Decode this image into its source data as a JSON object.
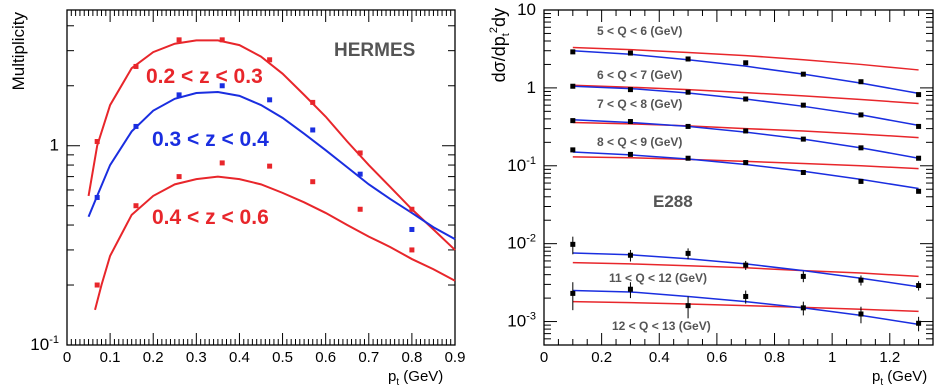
{
  "chart_data": [
    {
      "type": "scatter",
      "yscale": "log",
      "xlim": [
        0,
        0.9
      ],
      "ylim": [
        0.1,
        4.8
      ],
      "xlabel": "p_t (GeV)",
      "ylabel": "Multiplicity",
      "annotation": "HERMES",
      "x_ticks": [
        "0",
        "0.1",
        "0.2",
        "0.3",
        "0.4",
        "0.5",
        "0.6",
        "0.7",
        "0.8",
        "0.9"
      ],
      "y_ticks": [
        {
          "label": "10",
          "sup": "-1",
          "value": 0.1
        },
        {
          "label": "1",
          "sup": "",
          "value": 1
        }
      ],
      "series": [
        {
          "name": "0.2 < z < 0.3",
          "color": "#e8262b",
          "points": [
            [
              0.07,
              1.05
            ],
            [
              0.16,
              2.5
            ],
            [
              0.26,
              3.4
            ],
            [
              0.36,
              3.4
            ],
            [
              0.47,
              2.7
            ],
            [
              0.57,
              1.65
            ],
            [
              0.68,
              0.92
            ],
            [
              0.8,
              0.48
            ]
          ],
          "curve": [
            [
              0.05,
              0.56
            ],
            [
              0.07,
              1.0
            ],
            [
              0.1,
              1.6
            ],
            [
              0.15,
              2.45
            ],
            [
              0.2,
              2.95
            ],
            [
              0.25,
              3.25
            ],
            [
              0.3,
              3.38
            ],
            [
              0.35,
              3.38
            ],
            [
              0.4,
              3.2
            ],
            [
              0.45,
              2.8
            ],
            [
              0.5,
              2.3
            ],
            [
              0.55,
              1.8
            ],
            [
              0.6,
              1.4
            ],
            [
              0.65,
              1.05
            ],
            [
              0.7,
              0.8
            ],
            [
              0.75,
              0.62
            ],
            [
              0.8,
              0.48
            ],
            [
              0.85,
              0.38
            ],
            [
              0.9,
              0.3
            ]
          ]
        },
        {
          "name": "0.3 < z < 0.4",
          "color": "#1a2ee0",
          "points": [
            [
              0.07,
              0.55
            ],
            [
              0.16,
              1.25
            ],
            [
              0.26,
              1.8
            ],
            [
              0.36,
              2.0
            ],
            [
              0.47,
              1.7
            ],
            [
              0.57,
              1.2
            ],
            [
              0.68,
              0.72
            ],
            [
              0.8,
              0.38
            ]
          ],
          "curve": [
            [
              0.05,
              0.44
            ],
            [
              0.07,
              0.56
            ],
            [
              0.1,
              0.8
            ],
            [
              0.15,
              1.18
            ],
            [
              0.2,
              1.5
            ],
            [
              0.25,
              1.72
            ],
            [
              0.3,
              1.84
            ],
            [
              0.35,
              1.86
            ],
            [
              0.4,
              1.78
            ],
            [
              0.45,
              1.6
            ],
            [
              0.5,
              1.38
            ],
            [
              0.55,
              1.15
            ],
            [
              0.6,
              0.95
            ],
            [
              0.65,
              0.78
            ],
            [
              0.7,
              0.64
            ],
            [
              0.75,
              0.54
            ],
            [
              0.8,
              0.46
            ],
            [
              0.85,
              0.39
            ],
            [
              0.9,
              0.34
            ]
          ]
        },
        {
          "name": "0.4 < z < 0.6",
          "color": "#e8262b",
          "points": [
            [
              0.07,
              0.2
            ],
            [
              0.16,
              0.5
            ],
            [
              0.26,
              0.7
            ],
            [
              0.36,
              0.82
            ],
            [
              0.47,
              0.79
            ],
            [
              0.57,
              0.66
            ],
            [
              0.68,
              0.48
            ],
            [
              0.8,
              0.3
            ]
          ],
          "curve": [
            [
              0.065,
              0.15
            ],
            [
              0.08,
              0.2
            ],
            [
              0.1,
              0.28
            ],
            [
              0.15,
              0.45
            ],
            [
              0.2,
              0.56
            ],
            [
              0.25,
              0.64
            ],
            [
              0.3,
              0.68
            ],
            [
              0.35,
              0.7
            ],
            [
              0.4,
              0.68
            ],
            [
              0.45,
              0.64
            ],
            [
              0.5,
              0.58
            ],
            [
              0.55,
              0.52
            ],
            [
              0.6,
              0.46
            ],
            [
              0.65,
              0.4
            ],
            [
              0.7,
              0.35
            ],
            [
              0.75,
              0.31
            ],
            [
              0.8,
              0.27
            ],
            [
              0.85,
              0.24
            ],
            [
              0.9,
              0.21
            ]
          ]
        }
      ]
    },
    {
      "type": "scatter",
      "yscale": "log",
      "xlim": [
        0,
        1.35
      ],
      "ylim": [
        0.0005,
        10
      ],
      "xlabel": "p_t (GeV)",
      "ylabel": "dσ/dp_t^2dy",
      "annotation": "E288",
      "x_ticks": [
        "0",
        "0.2",
        "0.4",
        "0.6",
        "0.8",
        "1",
        "1.2"
      ],
      "y_ticks": [
        {
          "label": "10",
          "sup": "",
          "value": 10
        },
        {
          "label": "1",
          "sup": "",
          "value": 1
        },
        {
          "label": "10",
          "sup": "-1",
          "value": 0.1
        },
        {
          "label": "10",
          "sup": "-2",
          "value": 0.01
        },
        {
          "label": "10",
          "sup": "-3",
          "value": 0.001
        }
      ],
      "series": [
        {
          "name": "5 < Q < 6 (GeV)",
          "points": [
            [
              0.1,
              2.9
            ],
            [
              0.3,
              2.8
            ],
            [
              0.5,
              2.35
            ],
            [
              0.7,
              2.1
            ],
            [
              0.9,
              1.5
            ],
            [
              1.1,
              1.2
            ],
            [
              1.3,
              0.82
            ]
          ],
          "blue_curve": [
            [
              0.1,
              3.0
            ],
            [
              0.3,
              2.7
            ],
            [
              0.5,
              2.3
            ],
            [
              0.7,
              1.9
            ],
            [
              0.9,
              1.5
            ],
            [
              1.1,
              1.15
            ],
            [
              1.3,
              0.85
            ]
          ],
          "red_curve": [
            [
              0.1,
              3.3
            ],
            [
              0.3,
              3.1
            ],
            [
              0.5,
              2.85
            ],
            [
              0.7,
              2.6
            ],
            [
              0.9,
              2.3
            ],
            [
              1.1,
              2.0
            ],
            [
              1.3,
              1.7
            ]
          ]
        },
        {
          "name": "6 < Q < 7 (GeV)",
          "points": [
            [
              0.1,
              1.05
            ],
            [
              0.3,
              0.95
            ],
            [
              0.5,
              0.88
            ],
            [
              0.7,
              0.72
            ],
            [
              0.9,
              0.6
            ],
            [
              1.1,
              0.45
            ],
            [
              1.3,
              0.32
            ]
          ],
          "blue_curve": [
            [
              0.1,
              1.05
            ],
            [
              0.3,
              0.98
            ],
            [
              0.5,
              0.86
            ],
            [
              0.7,
              0.72
            ],
            [
              0.9,
              0.58
            ],
            [
              1.1,
              0.45
            ],
            [
              1.3,
              0.33
            ]
          ],
          "red_curve": [
            [
              0.1,
              1.08
            ],
            [
              0.3,
              1.02
            ],
            [
              0.5,
              0.95
            ],
            [
              0.7,
              0.87
            ],
            [
              0.9,
              0.79
            ],
            [
              1.1,
              0.71
            ],
            [
              1.3,
              0.63
            ]
          ]
        },
        {
          "name": "7 < Q < 8 (GeV)",
          "points": [
            [
              0.1,
              0.38
            ],
            [
              0.3,
              0.37
            ],
            [
              0.5,
              0.32
            ],
            [
              0.7,
              0.28
            ],
            [
              0.9,
              0.22
            ],
            [
              1.1,
              0.17
            ],
            [
              1.3,
              0.125
            ]
          ],
          "blue_curve": [
            [
              0.1,
              0.39
            ],
            [
              0.3,
              0.36
            ],
            [
              0.5,
              0.32
            ],
            [
              0.7,
              0.27
            ],
            [
              0.9,
              0.22
            ],
            [
              1.1,
              0.17
            ],
            [
              1.3,
              0.125
            ]
          ],
          "red_curve": [
            [
              0.1,
              0.36
            ],
            [
              0.3,
              0.345
            ],
            [
              0.5,
              0.325
            ],
            [
              0.7,
              0.3
            ],
            [
              0.9,
              0.28
            ],
            [
              1.1,
              0.255
            ],
            [
              1.3,
              0.23
            ]
          ]
        },
        {
          "name": "8 < Q < 9 (GeV)",
          "points": [
            [
              0.1,
              0.16
            ],
            [
              0.3,
              0.14
            ],
            [
              0.5,
              0.125
            ],
            [
              0.7,
              0.11
            ],
            [
              0.9,
              0.082
            ],
            [
              1.1,
              0.063
            ],
            [
              1.3,
              0.047
            ]
          ],
          "blue_curve": [
            [
              0.1,
              0.15
            ],
            [
              0.3,
              0.138
            ],
            [
              0.5,
              0.122
            ],
            [
              0.7,
              0.104
            ],
            [
              0.9,
              0.085
            ],
            [
              1.1,
              0.067
            ],
            [
              1.3,
              0.051
            ]
          ],
          "red_curve": [
            [
              0.1,
              0.13
            ],
            [
              0.3,
              0.127
            ],
            [
              0.5,
              0.121
            ],
            [
              0.7,
              0.114
            ],
            [
              0.9,
              0.107
            ],
            [
              1.1,
              0.1
            ],
            [
              1.3,
              0.092
            ]
          ]
        },
        {
          "name": "11 < Q < 12 (GeV)",
          "points": [
            [
              0.1,
              0.0098
            ],
            [
              0.3,
              0.0071
            ],
            [
              0.5,
              0.0075
            ],
            [
              0.7,
              0.0053
            ],
            [
              0.9,
              0.0038
            ],
            [
              1.1,
              0.0034
            ],
            [
              1.3,
              0.0029
            ]
          ],
          "errors": [
            0.0025,
            0.0012,
            0.0012,
            0.0007,
            0.0006,
            0.0005,
            0.0004
          ],
          "blue_curve": [
            [
              0.1,
              0.0076
            ],
            [
              0.3,
              0.0072
            ],
            [
              0.5,
              0.0064
            ],
            [
              0.7,
              0.0055
            ],
            [
              0.9,
              0.0045
            ],
            [
              1.1,
              0.0036
            ],
            [
              1.3,
              0.0028
            ]
          ],
          "red_curve": [
            [
              0.1,
              0.0057
            ],
            [
              0.3,
              0.0055
            ],
            [
              0.5,
              0.0052
            ],
            [
              0.7,
              0.0049
            ],
            [
              0.9,
              0.0045
            ],
            [
              1.1,
              0.0042
            ],
            [
              1.3,
              0.0038
            ]
          ]
        },
        {
          "name": "12 < Q < 13 (GeV)",
          "points": [
            [
              0.1,
              0.0023
            ],
            [
              0.3,
              0.0026
            ],
            [
              0.5,
              0.0016
            ],
            [
              0.7,
              0.0021
            ],
            [
              0.9,
              0.0015
            ],
            [
              1.1,
              0.00125
            ],
            [
              1.3,
              0.00095
            ]
          ],
          "errors": [
            0.0009,
            0.0006,
            0.0005,
            0.0004,
            0.0003,
            0.0003,
            0.0002
          ],
          "blue_curve": [
            [
              0.1,
              0.0025
            ],
            [
              0.3,
              0.0024
            ],
            [
              0.5,
              0.0021
            ],
            [
              0.7,
              0.0018
            ],
            [
              0.9,
              0.0015
            ],
            [
              1.1,
              0.0012
            ],
            [
              1.3,
              0.00092
            ]
          ],
          "red_curve": [
            [
              0.1,
              0.0018
            ],
            [
              0.3,
              0.00175
            ],
            [
              0.5,
              0.00168
            ],
            [
              0.7,
              0.0016
            ],
            [
              0.9,
              0.00152
            ],
            [
              1.1,
              0.00144
            ],
            [
              1.3,
              0.00135
            ]
          ]
        }
      ]
    }
  ]
}
